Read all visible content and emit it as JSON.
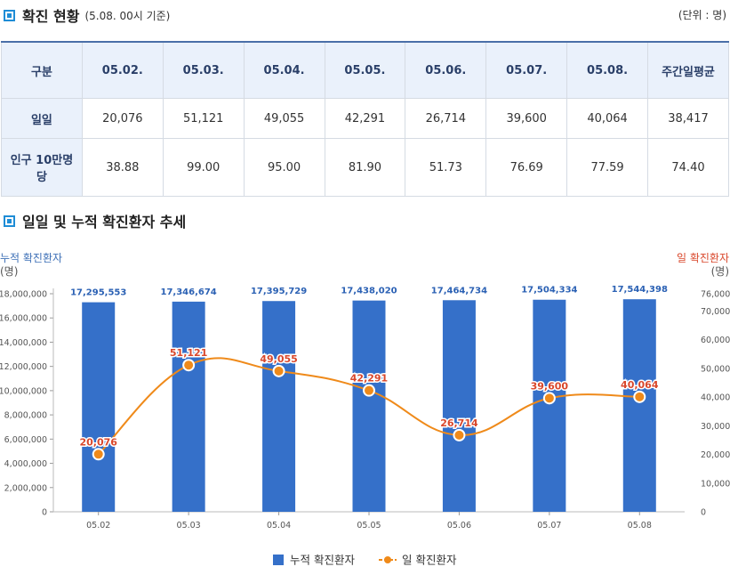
{
  "section1": {
    "title": "확진 현황",
    "subtitle": "(5.08. 00시 기준)",
    "unit": "(단위 : 명)"
  },
  "table": {
    "headers": [
      "구분",
      "05.02.",
      "05.03.",
      "05.04.",
      "05.05.",
      "05.06.",
      "05.07.",
      "05.08.",
      "주간일평균"
    ],
    "rows": [
      {
        "label": "일일",
        "values": [
          "20,076",
          "51,121",
          "49,055",
          "42,291",
          "26,714",
          "39,600",
          "40,064",
          "38,417"
        ]
      },
      {
        "label": "인구 10만명당",
        "values": [
          "38.88",
          "99.00",
          "95.00",
          "81.90",
          "51.73",
          "76.69",
          "77.59",
          "74.40"
        ]
      }
    ]
  },
  "section2": {
    "title": "일일 및 누적 확진환자 추세"
  },
  "chart_data": {
    "type": "bar",
    "title": "일일 및 누적 확진환자 추세",
    "categories": [
      "05.02",
      "05.03",
      "05.04",
      "05.05",
      "05.06",
      "05.07",
      "05.08"
    ],
    "series": [
      {
        "name": "누적 확진환자",
        "type": "bar",
        "axis": "left",
        "color": "#3570c9",
        "values": [
          17295553,
          17346674,
          17395729,
          17438020,
          17464734,
          17504334,
          17544398
        ],
        "labels": [
          "17,295,553",
          "17,346,674",
          "17,395,729",
          "17,438,020",
          "17,464,734",
          "17,504,334",
          "17,544,398"
        ]
      },
      {
        "name": "일 확진환자",
        "type": "line",
        "axis": "right",
        "color": "#ef8a1a",
        "values": [
          20076,
          51121,
          49055,
          42291,
          26714,
          39600,
          40064
        ],
        "labels": [
          "20,076",
          "51,121",
          "49,055",
          "42,291",
          "26,714",
          "39,600",
          "40,064"
        ]
      }
    ],
    "left_axis": {
      "title": "누적 확진환자",
      "unit": "(명)",
      "range": [
        0,
        18000000
      ],
      "ticks": [
        0,
        2000000,
        4000000,
        6000000,
        8000000,
        10000000,
        12000000,
        14000000,
        16000000,
        18000000
      ],
      "tick_labels": [
        "0",
        "2,000,000",
        "4,000,000",
        "6,000,000",
        "8,000,000",
        "10,000,000",
        "12,000,000",
        "14,000,000",
        "16,000,000",
        "18,000,000"
      ]
    },
    "right_axis": {
      "title": "일 확진환자",
      "unit": "(명)",
      "range": [
        0,
        76000
      ],
      "ticks": [
        0,
        10000,
        20000,
        30000,
        40000,
        50000,
        60000,
        70000,
        76000
      ],
      "tick_labels": [
        "0",
        "10,000",
        "20,000",
        "30,000",
        "40,000",
        "50,000",
        "60,000",
        "70,000",
        "76,000"
      ]
    },
    "legend": [
      "누적 확진환자",
      "일 확진환자"
    ],
    "legend_position": "bottom-center",
    "colors": {
      "bar": "#3570c9",
      "line": "#ef8a1a",
      "left_title": "#3d6fb6",
      "right_title": "#d9472b",
      "bar_label": "#2b61b4",
      "line_label": "#d9472b"
    }
  }
}
